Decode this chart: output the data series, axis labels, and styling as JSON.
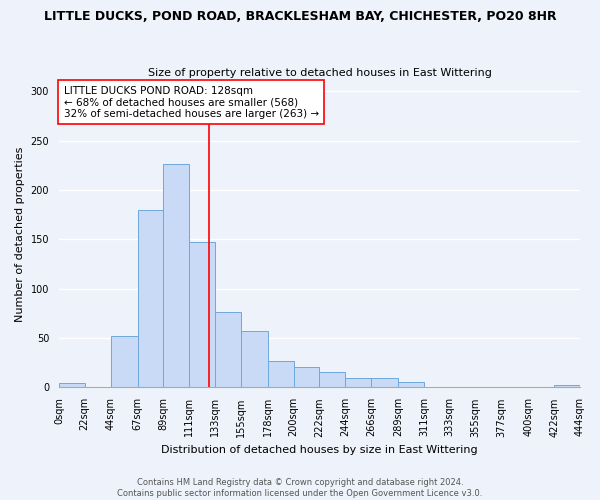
{
  "title": "LITTLE DUCKS, POND ROAD, BRACKLESHAM BAY, CHICHESTER, PO20 8HR",
  "subtitle": "Size of property relative to detached houses in East Wittering",
  "xlabel": "Distribution of detached houses by size in East Wittering",
  "ylabel": "Number of detached properties",
  "footer_line1": "Contains HM Land Registry data © Crown copyright and database right 2024.",
  "footer_line2": "Contains public sector information licensed under the Open Government Licence v3.0.",
  "bin_labels": [
    "0sqm",
    "22sqm",
    "44sqm",
    "67sqm",
    "89sqm",
    "111sqm",
    "133sqm",
    "155sqm",
    "178sqm",
    "200sqm",
    "222sqm",
    "244sqm",
    "266sqm",
    "289sqm",
    "311sqm",
    "333sqm",
    "355sqm",
    "377sqm",
    "400sqm",
    "422sqm",
    "444sqm"
  ],
  "bar_values": [
    5,
    0,
    52,
    180,
    226,
    147,
    76,
    57,
    27,
    21,
    16,
    10,
    10,
    6,
    0,
    0,
    0,
    0,
    0,
    2
  ],
  "bar_color": "#c8daf5",
  "bar_edge_color": "#6fa8dc",
  "vline_color": "red",
  "annotation_title": "LITTLE DUCKS POND ROAD: 128sqm",
  "annotation_line1": "← 68% of detached houses are smaller (568)",
  "annotation_line2": "32% of semi-detached houses are larger (263) →",
  "ylim": [
    0,
    310
  ],
  "bin_edges": [
    0,
    22,
    44,
    67,
    89,
    111,
    133,
    155,
    178,
    200,
    222,
    244,
    266,
    289,
    311,
    333,
    355,
    377,
    400,
    422,
    444
  ],
  "background_color": "#eef2fa",
  "grid_color": "#ffffff",
  "title_fontsize": 9,
  "subtitle_fontsize": 8,
  "ylabel_fontsize": 8,
  "xlabel_fontsize": 8,
  "tick_fontsize": 7,
  "footer_fontsize": 6,
  "annot_fontsize": 7.5
}
